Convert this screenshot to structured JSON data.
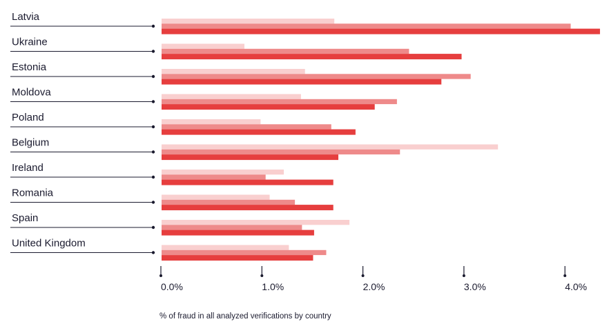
{
  "chart_data": {
    "type": "bar",
    "orientation": "horizontal",
    "xlabel": "% of fraud in all analyzed verifications by country",
    "xlim": [
      0,
      4.35
    ],
    "ticks": [
      "0.0%",
      "1.0%",
      "2.0%",
      "3.0%",
      "4.0%"
    ],
    "tick_values": [
      0,
      1,
      2,
      3,
      4
    ],
    "grid": false,
    "legend": "none",
    "categories": [
      "Latvia",
      "Ukraine",
      "Estonia",
      "Moldova",
      "Poland",
      "Belgium",
      "Ireland",
      "Romania",
      "Spain",
      "United Kingdom"
    ],
    "series": [
      {
        "color": "#f9cfcf",
        "values": [
          1.71,
          0.82,
          1.42,
          1.38,
          0.98,
          3.33,
          1.21,
          1.07,
          1.86,
          1.26
        ]
      },
      {
        "color": "#ee8a8a",
        "values": [
          4.05,
          2.45,
          3.06,
          2.33,
          1.68,
          2.36,
          1.03,
          1.32,
          1.39,
          1.63
        ]
      },
      {
        "color": "#e63e3e",
        "values": [
          4.34,
          2.97,
          2.77,
          2.11,
          1.92,
          1.75,
          1.7,
          1.7,
          1.51,
          1.5
        ]
      }
    ]
  }
}
